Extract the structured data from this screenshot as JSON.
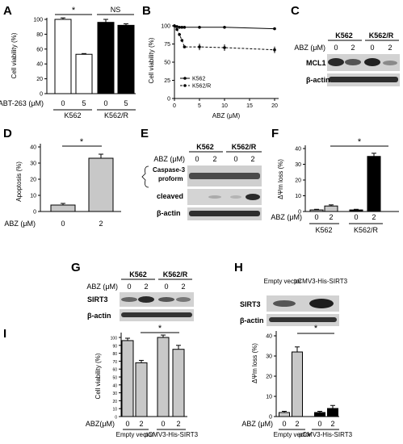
{
  "panels": {
    "A": {
      "letter": "A",
      "ylabel": "Cell viability (%)",
      "yticks": [
        "0",
        "20",
        "40",
        "60",
        "80",
        "100"
      ],
      "row_label": "ABT-263 (μM)",
      "doses": [
        "0",
        "5",
        "0",
        "5"
      ],
      "cell_lines": [
        "K562",
        "K562/R"
      ],
      "sig": [
        "*",
        "NS"
      ]
    },
    "B": {
      "letter": "B",
      "ylabel": "Cell viability (%)",
      "xlabel": "ABZ (μM)",
      "xticks": [
        "0",
        "5",
        "10",
        "15",
        "20"
      ],
      "yticks": [
        "0",
        "25",
        "50",
        "75",
        "100"
      ],
      "legend": [
        "K562",
        "K562/R"
      ]
    },
    "C": {
      "letter": "C",
      "row_label": "ABZ (μM)",
      "cell_lines": [
        "K562",
        "K562/R"
      ],
      "doses": [
        "0",
        "2",
        "0",
        "2"
      ],
      "blots": [
        "MCL1",
        "β-actin"
      ]
    },
    "D": {
      "letter": "D",
      "ylabel": "Apoptosis (%)",
      "yticks": [
        "0",
        "10",
        "20",
        "30",
        "40"
      ],
      "row_label": "ABZ (μM)",
      "doses": [
        "0",
        "2"
      ],
      "sig": "*"
    },
    "E": {
      "letter": "E",
      "row_label": "ABZ (μM)",
      "cell_lines": [
        "K562",
        "K562/R"
      ],
      "doses": [
        "0",
        "2",
        "0",
        "2"
      ],
      "caspase_label": "Caspase-3",
      "blots": [
        "proform",
        "cleaved",
        "β-actin"
      ]
    },
    "F": {
      "letter": "F",
      "ylabel": "ΔΨm loss (%)",
      "yticks": [
        "0",
        "10",
        "20",
        "30",
        "40"
      ],
      "row_label": "ABZ (μM)",
      "doses": [
        "0",
        "2",
        "0",
        "2"
      ],
      "cell_lines": [
        "K562",
        "K562/R"
      ],
      "sig": "*"
    },
    "G": {
      "letter": "G",
      "row_label": "ABZ (μM)",
      "cell_lines": [
        "K562",
        "K562/R"
      ],
      "doses": [
        "0",
        "2",
        "0",
        "2"
      ],
      "blots": [
        "SIRT3",
        "β-actin"
      ]
    },
    "H": {
      "letter": "H",
      "columns": [
        "Empty vector",
        "pCMV3-His-SIRT3"
      ],
      "blots": [
        "SIRT3",
        "β-actin"
      ]
    },
    "I": {
      "letter": "I",
      "viability_ylabel": "Cell viability (%)",
      "viability_yticks": [
        "0",
        "10",
        "20",
        "30",
        "40",
        "50",
        "60",
        "70",
        "80",
        "90",
        "100"
      ],
      "mmp_ylabel": "ΔΨm loss (%)",
      "mmp_yticks": [
        "0",
        "10",
        "20",
        "30",
        "40"
      ],
      "row_label_left": "ABZ(μM)",
      "row_label_right": "ABZ (μM)",
      "doses": [
        "0",
        "2",
        "0",
        "2"
      ],
      "groups": [
        "Empty vector",
        "pCMV3-His-SIRT3"
      ],
      "sig": "*"
    }
  },
  "chart_data": [
    {
      "type": "bar",
      "panel": "A",
      "ylabel": "Cell viability (%)",
      "ylim": [
        0,
        100
      ],
      "categories": [
        "K562 0",
        "K562 5",
        "K562/R 0",
        "K562/R 5"
      ],
      "values": [
        100,
        53,
        96,
        92
      ],
      "errors": [
        2,
        1,
        4,
        2
      ],
      "colors": [
        "#ffffff",
        "#ffffff",
        "#000000",
        "#000000"
      ]
    },
    {
      "type": "line",
      "panel": "B",
      "xlabel": "ABZ (μM)",
      "ylabel": "Cell viability (%)",
      "xlim": [
        0,
        20
      ],
      "ylim": [
        0,
        100
      ],
      "series": [
        {
          "name": "K562",
          "x": [
            0,
            0.5,
            1,
            1.5,
            2,
            5,
            10,
            20
          ],
          "y": [
            100,
            99,
            98,
            98,
            98,
            98,
            98,
            96
          ],
          "style": "solid"
        },
        {
          "name": "K562/R",
          "x": [
            0,
            0.5,
            1,
            1.5,
            2,
            5,
            10,
            20
          ],
          "y": [
            100,
            95,
            88,
            80,
            71,
            71,
            70,
            67
          ],
          "style": "dashed"
        }
      ]
    },
    {
      "type": "bar",
      "panel": "D",
      "ylabel": "Apoptosis (%)",
      "ylim": [
        0,
        40
      ],
      "categories": [
        "0",
        "2"
      ],
      "values": [
        4,
        33
      ],
      "errors": [
        1,
        2.5
      ],
      "colors": [
        "#c8c8c8",
        "#c8c8c8"
      ]
    },
    {
      "type": "bar",
      "panel": "F",
      "ylabel": "ΔΨm loss (%)",
      "ylim": [
        0,
        40
      ],
      "categories": [
        "K562 0",
        "K562 2",
        "K562/R 0",
        "K562/R 2"
      ],
      "values": [
        1,
        3.5,
        1,
        35
      ],
      "errors": [
        0.4,
        0.7,
        0.4,
        2
      ],
      "colors": [
        "#c8c8c8",
        "#c8c8c8",
        "#000000",
        "#000000"
      ]
    },
    {
      "type": "bar",
      "panel": "I-left",
      "ylabel": "Cell viability (%)",
      "ylim": [
        0,
        100
      ],
      "categories": [
        "Empty vector 0",
        "Empty vector 2",
        "pCMV3-His-SIRT3 0",
        "pCMV3-His-SIRT3 2"
      ],
      "values": [
        96,
        68,
        100,
        85
      ],
      "errors": [
        3,
        3,
        3,
        5
      ],
      "colors": [
        "#c8c8c8",
        "#c8c8c8",
        "#c8c8c8",
        "#c8c8c8"
      ]
    },
    {
      "type": "bar",
      "panel": "I-right",
      "ylabel": "ΔΨm loss (%)",
      "ylim": [
        0,
        40
      ],
      "categories": [
        "Empty vector 0",
        "Empty vector 2",
        "pCMV3-His-SIRT3 0",
        "pCMV3-His-SIRT3 2"
      ],
      "values": [
        2,
        32,
        2,
        4
      ],
      "errors": [
        0.6,
        2.5,
        0.6,
        1.5
      ],
      "colors": [
        "#c8c8c8",
        "#c8c8c8",
        "#000000",
        "#000000"
      ]
    }
  ]
}
